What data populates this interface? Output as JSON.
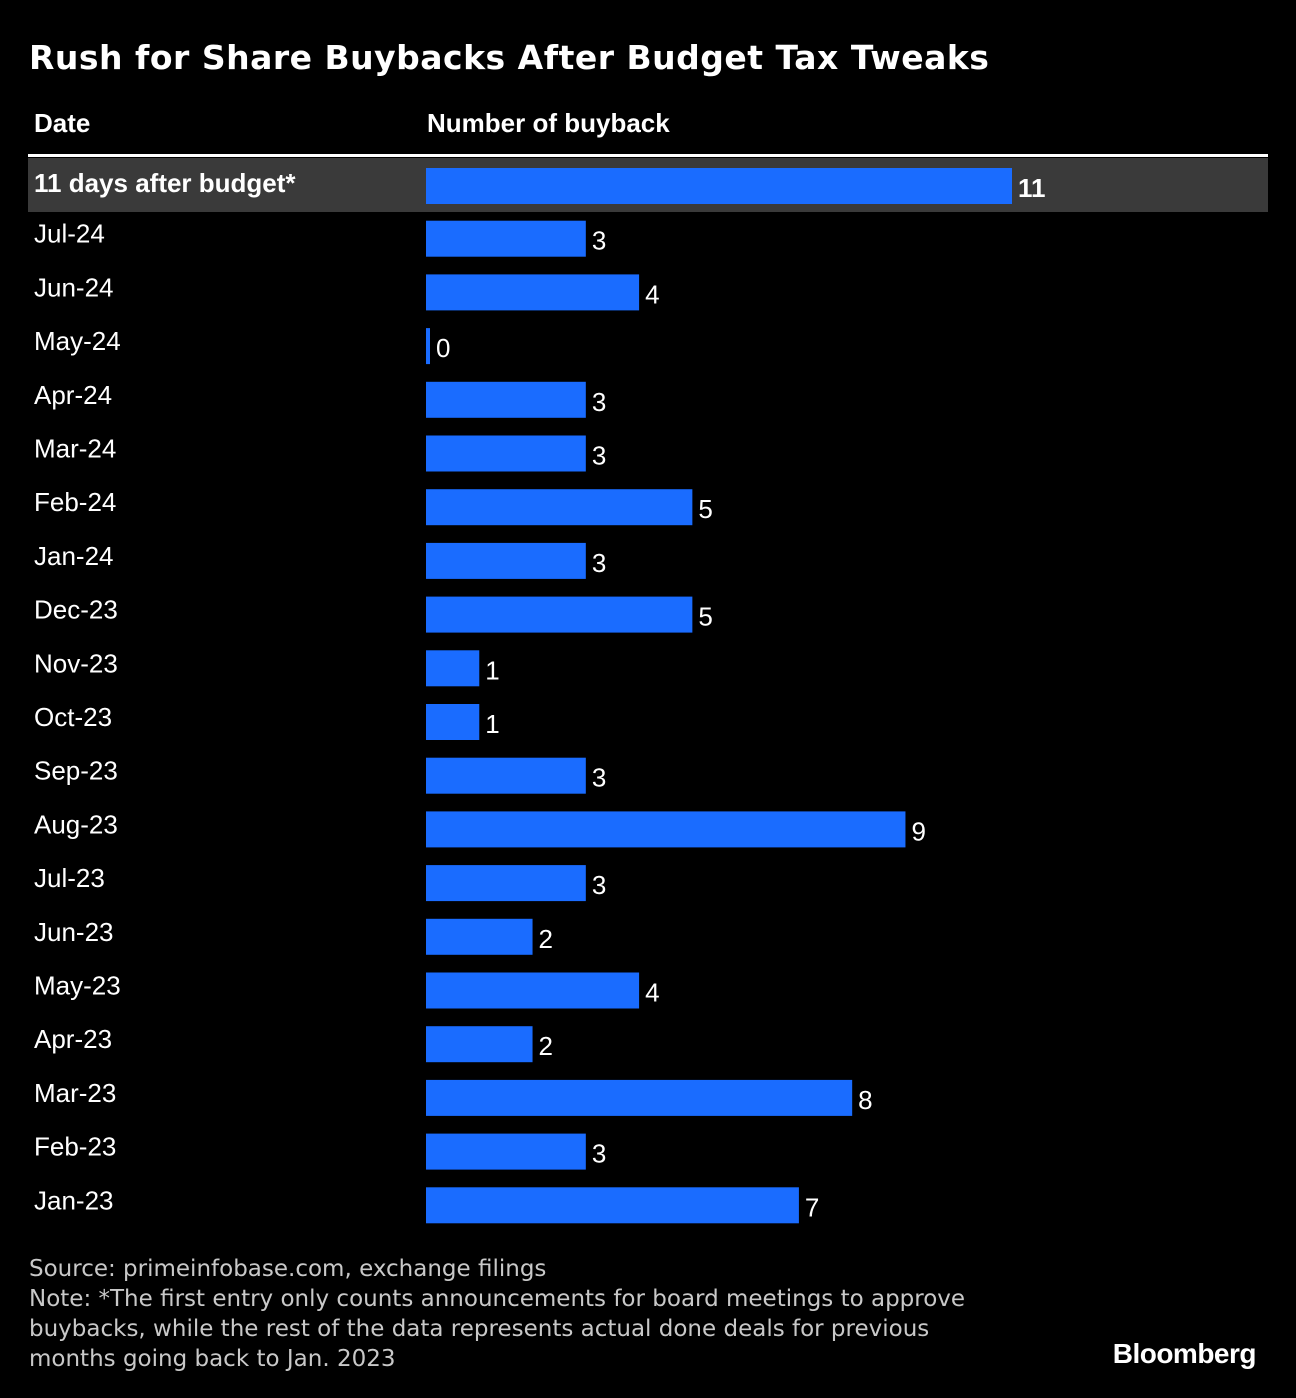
{
  "title": "Rush for Share Buybacks After Budget Tax Tweaks",
  "columns": {
    "date": "Date",
    "number": "Number of buyback"
  },
  "colors": {
    "background": "#000000",
    "bar": "#1a6cff",
    "highlight_row": "#3a3a3a",
    "text": "#ffffff",
    "footnote": "#c8c8c8"
  },
  "chart_data": {
    "type": "bar",
    "orientation": "horizontal",
    "categories": [
      "11 days after budget*",
      "Jul-24",
      "Jun-24",
      "May-24",
      "Apr-24",
      "Mar-24",
      "Feb-24",
      "Jan-24",
      "Dec-23",
      "Nov-23",
      "Oct-23",
      "Sep-23",
      "Aug-23",
      "Jul-23",
      "Jun-23",
      "May-23",
      "Apr-23",
      "Mar-23",
      "Feb-23",
      "Jan-23"
    ],
    "values": [
      11,
      3,
      4,
      0,
      3,
      3,
      5,
      3,
      5,
      1,
      1,
      3,
      9,
      3,
      2,
      4,
      2,
      8,
      3,
      7
    ],
    "highlighted_category": "11 days after budget*",
    "xlim": [
      0,
      11
    ],
    "grid": false,
    "data_labels": true
  },
  "source": "Source: primeinfobase.com, exchange filings",
  "note_lines": [
    "Note: *The first entry only counts announcements for board meetings to approve",
    "buybacks, while the rest of the data represents actual done deals for previous",
    "months going back to Jan. 2023"
  ],
  "brand": "Bloomberg"
}
